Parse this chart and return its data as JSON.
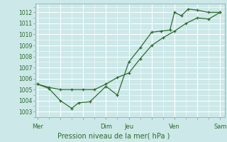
{
  "bg_color": "#cce8e8",
  "grid_color": "#ffffff",
  "line_color": "#2d6a2d",
  "title": "Pression niveau de la mer( hPa )",
  "x_ticks_labels": [
    "Mer",
    "",
    "",
    "Dim",
    "Jeu",
    "",
    "Ven",
    "",
    "Sam"
  ],
  "x_ticks_pos": [
    0,
    1,
    2,
    3,
    4,
    5,
    6,
    7,
    8
  ],
  "x_label_ticks": [
    0,
    3,
    4,
    6,
    8
  ],
  "x_label_names": [
    "Mer",
    "Dim",
    "Jeu",
    "Ven",
    "Sam"
  ],
  "ylim": [
    1002.5,
    1012.8
  ],
  "yticks": [
    1003,
    1004,
    1005,
    1006,
    1007,
    1008,
    1009,
    1010,
    1011,
    1012
  ],
  "xlim": [
    -0.1,
    8.2
  ],
  "line1_x": [
    0,
    0.5,
    1.0,
    1.5,
    1.8,
    2.3,
    3.0,
    3.5,
    4.0,
    4.5,
    5.0,
    5.4,
    5.8,
    6.0,
    6.3,
    6.6,
    7.0,
    7.5,
    8.0
  ],
  "line1_y": [
    1005.5,
    1005.1,
    1004.0,
    1003.3,
    1003.8,
    1003.9,
    1005.3,
    1004.5,
    1007.5,
    1008.8,
    1010.2,
    1010.3,
    1010.4,
    1012.0,
    1011.7,
    1012.3,
    1012.2,
    1012.0,
    1012.0
  ],
  "line2_x": [
    0,
    0.5,
    1.0,
    1.5,
    2.0,
    2.5,
    3.0,
    3.5,
    4.0,
    4.5,
    5.0,
    5.5,
    6.0,
    6.5,
    7.0,
    7.5,
    8.0
  ],
  "line2_y": [
    1005.5,
    1005.2,
    1005.0,
    1005.0,
    1005.0,
    1005.0,
    1005.5,
    1006.1,
    1006.5,
    1007.8,
    1009.0,
    1009.7,
    1010.3,
    1011.0,
    1011.5,
    1011.4,
    1012.0
  ],
  "vline_color": "#a0b8b8",
  "vline_positions": [
    0,
    3,
    4,
    6,
    8
  ]
}
